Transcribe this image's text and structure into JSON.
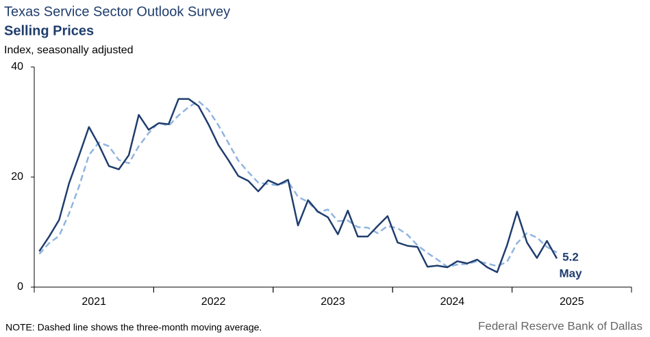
{
  "chart_data": {
    "type": "line",
    "title": "Texas Service Sector Outlook Survey",
    "subtitle": "Selling Prices",
    "y_label": "Index, seasonally adjusted",
    "note": "NOTE: Dashed line shows the three-month  moving average.",
    "source": "Federal Reserve Bank of Dallas",
    "annotation": "May",
    "x": [
      2021.042,
      2021.125,
      2021.208,
      2021.292,
      2021.375,
      2021.458,
      2021.542,
      2021.625,
      2021.708,
      2021.792,
      2021.875,
      2021.958,
      2022.042,
      2022.125,
      2022.208,
      2022.292,
      2022.375,
      2022.458,
      2022.542,
      2022.625,
      2022.708,
      2022.792,
      2022.875,
      2022.958,
      2023.042,
      2023.125,
      2023.208,
      2023.292,
      2023.375,
      2023.458,
      2023.542,
      2023.625,
      2023.708,
      2023.792,
      2023.875,
      2023.958,
      2024.042,
      2024.125,
      2024.208,
      2024.292,
      2024.375,
      2024.458,
      2024.542,
      2024.625,
      2024.708,
      2024.792,
      2024.875,
      2024.958,
      2025.042,
      2025.125,
      2025.208,
      2025.292,
      2025.375
    ],
    "series": [
      {
        "color": "#1f3d6d",
        "dashed": false,
        "values": [
          6.5,
          9.2,
          12.2,
          18.9,
          23.9,
          29.1,
          25.8,
          22.0,
          21.4,
          24.0,
          31.3,
          28.6,
          29.8,
          29.6,
          34.2,
          34.2,
          32.9,
          29.6,
          25.8,
          23.1,
          20.2,
          19.3,
          17.4,
          19.4,
          18.6,
          19.5,
          11.2,
          15.8,
          13.7,
          12.7,
          9.6,
          13.9,
          9.2,
          9.2,
          11.1,
          12.9,
          8.1,
          7.5,
          7.3,
          3.7,
          3.9,
          3.6,
          4.7,
          4.3,
          5.0,
          3.6,
          2.7,
          7.6,
          13.7,
          8.1,
          5.3,
          8.4,
          5.2
        ]
      },
      {
        "color": "#8fb4df",
        "dashed": true,
        "values": [
          6.0,
          8.0,
          9.3,
          13.4,
          18.3,
          24.0,
          26.3,
          25.6,
          23.1,
          22.5,
          25.6,
          28.0,
          29.9,
          29.3,
          31.2,
          32.7,
          33.8,
          32.2,
          29.4,
          26.2,
          23.0,
          20.9,
          19.0,
          18.7,
          18.5,
          19.2,
          16.4,
          15.5,
          13.6,
          14.1,
          12.0,
          12.1,
          10.9,
          10.8,
          9.8,
          11.1,
          10.7,
          9.5,
          7.6,
          6.2,
          5.0,
          3.7,
          4.1,
          4.2,
          4.7,
          4.3,
          3.8,
          4.6,
          8.0,
          9.8,
          9.0,
          7.3,
          6.3
        ]
      }
    ],
    "xlim": [
      2021,
      2026
    ],
    "xticks": [
      {
        "value": 2021.5,
        "label": "2021"
      },
      {
        "value": 2022.5,
        "label": "2022"
      },
      {
        "value": 2023.5,
        "label": "2023"
      },
      {
        "value": 2024.5,
        "label": "2024"
      },
      {
        "value": 2025.5,
        "label": "2025"
      }
    ],
    "ylim": [
      0,
      40
    ],
    "yticks": [
      0,
      20,
      40
    ],
    "grid": false
  }
}
